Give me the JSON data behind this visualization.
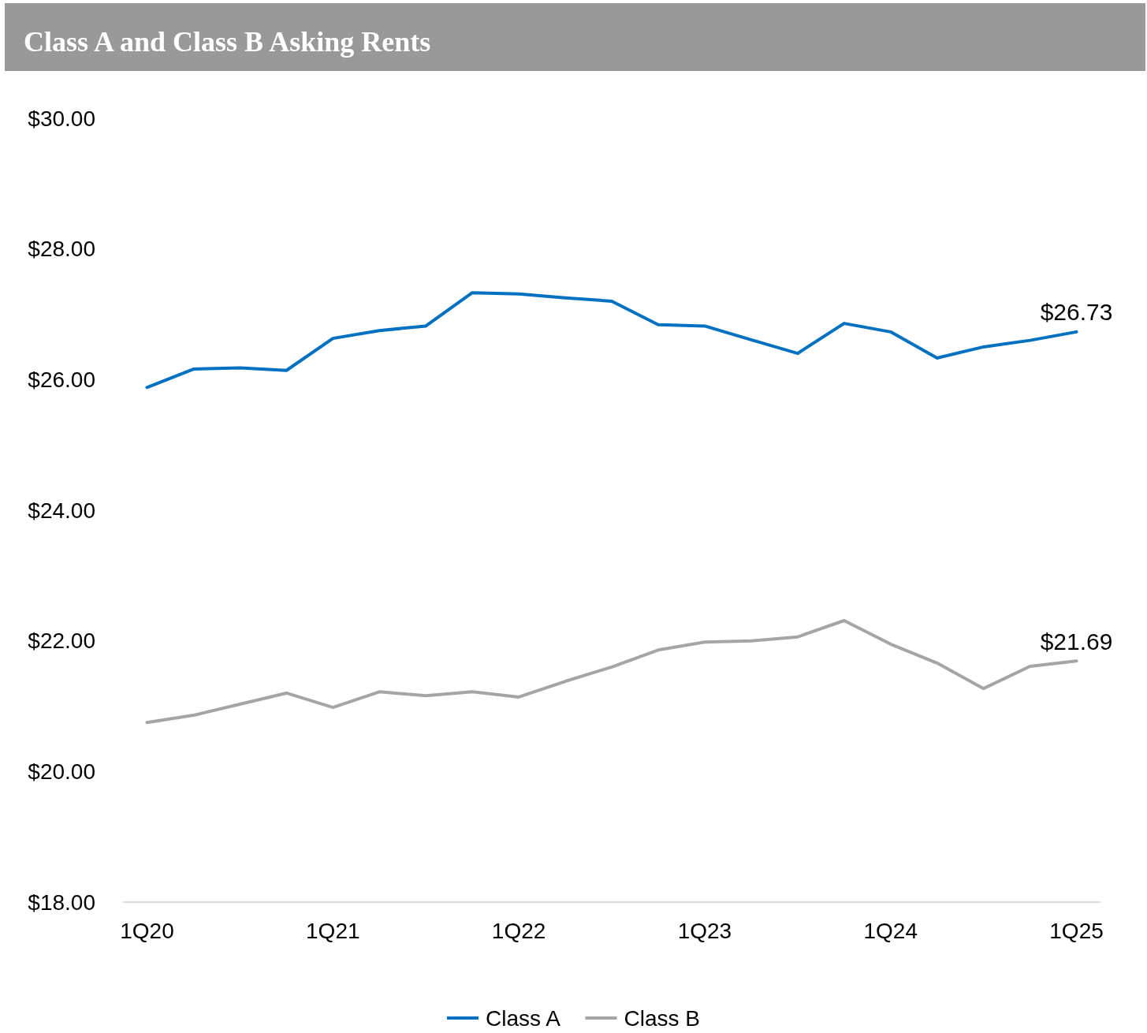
{
  "chart_data": {
    "type": "line",
    "title": "Class A and Class B Asking Rents",
    "categories": [
      "1Q20",
      null,
      null,
      null,
      "1Q21",
      null,
      null,
      null,
      "1Q22",
      null,
      null,
      null,
      "1Q23",
      null,
      null,
      null,
      "1Q24",
      null,
      null,
      null,
      "1Q25"
    ],
    "series": [
      {
        "name": "Class A",
        "color": "#0070c0",
        "values": [
          25.88,
          26.16,
          26.18,
          26.14,
          26.63,
          26.75,
          26.82,
          27.33,
          27.31,
          27.25,
          27.2,
          26.84,
          26.82,
          26.61,
          26.4,
          26.86,
          26.73,
          26.33,
          26.5,
          26.6,
          26.73
        ],
        "value_labels": [
          null,
          null,
          null,
          null,
          null,
          null,
          null,
          null,
          null,
          null,
          null,
          null,
          null,
          null,
          null,
          null,
          null,
          null,
          null,
          null,
          "$26.73"
        ]
      },
      {
        "name": "Class B",
        "color": "#a5a5a5",
        "values": [
          20.75,
          20.86,
          21.03,
          21.2,
          20.98,
          21.22,
          21.16,
          21.22,
          21.14,
          21.38,
          21.6,
          21.86,
          21.98,
          22.0,
          22.06,
          22.31,
          21.95,
          21.66,
          21.27,
          21.61,
          21.69
        ],
        "value_labels": [
          null,
          null,
          null,
          null,
          null,
          null,
          null,
          null,
          null,
          null,
          null,
          null,
          null,
          null,
          null,
          null,
          null,
          null,
          null,
          null,
          "$21.69"
        ]
      }
    ],
    "ylim": [
      18,
      30
    ],
    "yticks": [
      {
        "value": 18,
        "label": "$18.00"
      },
      {
        "value": 20,
        "label": "$20.00"
      },
      {
        "value": 22,
        "label": "$22.00"
      },
      {
        "value": 24,
        "label": "$24.00"
      },
      {
        "value": 26,
        "label": "$26.00"
      },
      {
        "value": 28,
        "label": "$28.00"
      },
      {
        "value": 30,
        "label": "$30.00"
      }
    ],
    "grid": false,
    "legend": "bottom",
    "marker": "none",
    "line_style": "solid"
  }
}
